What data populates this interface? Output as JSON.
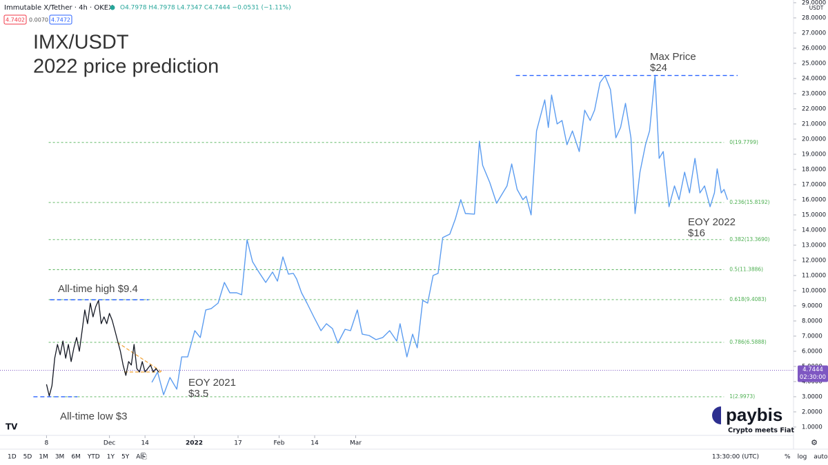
{
  "header": {
    "symbol": "Immutable X/Tether · 4h · OKEX",
    "ohlc": "O4.7978 H4.7978 L4.7347 C4.7444 −0.0531 (−1.11%)",
    "boxes": [
      "4.7402",
      "0.0070",
      "4.7472"
    ]
  },
  "chart_data": {
    "type": "line",
    "title": "IMX/USDT",
    "subtitle": "2022 price prediction",
    "y_unit": "USDT",
    "xlim": [
      -17,
      273
    ],
    "xticks": [
      {
        "value": 0,
        "label": "8"
      },
      {
        "value": 23,
        "label": "Dec"
      },
      {
        "value": 36,
        "label": "14"
      },
      {
        "value": 54,
        "label": "2022"
      },
      {
        "value": 70,
        "label": "17"
      },
      {
        "value": 85,
        "label": "Feb"
      },
      {
        "value": 98,
        "label": "14"
      },
      {
        "value": 113,
        "label": "Mar"
      }
    ],
    "ylim": [
      0.45,
      29.18
    ],
    "yticks": [
      {
        "value": 1,
        "label": "1.0000"
      },
      {
        "value": 2,
        "label": "2.0000"
      },
      {
        "value": 3,
        "label": "3.0000"
      },
      {
        "value": 4,
        "label": "4.0000"
      },
      {
        "value": 5,
        "label": "5.0000"
      },
      {
        "value": 6,
        "label": "6.0000"
      },
      {
        "value": 7,
        "label": "7.0000"
      },
      {
        "value": 8,
        "label": "8.0000"
      },
      {
        "value": 9,
        "label": "9.0000"
      },
      {
        "value": 10,
        "label": "10.0000"
      },
      {
        "value": 11,
        "label": "11.0000"
      },
      {
        "value": 12,
        "label": "12.0000"
      },
      {
        "value": 13,
        "label": "13.0000"
      },
      {
        "value": 14,
        "label": "14.0000"
      },
      {
        "value": 15,
        "label": "15.0000"
      },
      {
        "value": 16,
        "label": "16.0000"
      },
      {
        "value": 17,
        "label": "17.0000"
      },
      {
        "value": 18,
        "label": "18.0000"
      },
      {
        "value": 19,
        "label": "19.0000"
      },
      {
        "value": 20,
        "label": "20.0000"
      },
      {
        "value": 21,
        "label": "21.0000"
      },
      {
        "value": 22,
        "label": "22.0000"
      },
      {
        "value": 23,
        "label": "23.0000"
      },
      {
        "value": 24,
        "label": "24.0000"
      },
      {
        "value": 25,
        "label": "25.0000"
      },
      {
        "value": 26,
        "label": "26.0000"
      },
      {
        "value": 27,
        "label": "27.0000"
      },
      {
        "value": 28,
        "label": "28.0000"
      },
      {
        "value": 29,
        "label": "29.0000"
      }
    ],
    "series": [
      {
        "color": "#131722",
        "x": [
          0,
          1,
          2,
          3,
          4,
          5,
          6,
          7,
          8,
          9,
          10,
          11,
          12,
          13,
          14,
          15,
          16,
          17,
          18,
          19,
          20,
          21,
          22,
          23,
          24,
          25,
          26,
          27,
          28,
          29,
          30,
          31,
          32,
          33,
          34,
          35,
          36,
          37,
          38,
          39,
          40,
          41
        ],
        "values": [
          3.82,
          3.05,
          3.73,
          5.54,
          6.45,
          5.77,
          6.68,
          5.54,
          6.45,
          5.32,
          6.23,
          6.91,
          6.0,
          7.36,
          8.73,
          7.82,
          9.18,
          8.27,
          8.95,
          9.36,
          7.82,
          8.27,
          7.82,
          8.5,
          8.04,
          7.36,
          6.68,
          6.0,
          5.09,
          4.41,
          5.32,
          5.09,
          6.45,
          4.86,
          4.63,
          5.32,
          4.63,
          4.86,
          5.09,
          4.63,
          4.86,
          4.63
        ]
      },
      {
        "color": "#5b9cf0",
        "x": [
          38.5,
          40.6,
          42.8,
          45.1,
          47.6,
          49.4,
          51.6,
          54.2,
          56.2,
          58.2,
          60.2,
          62.7,
          65.0,
          67.0,
          69.5,
          71.3,
          73.3,
          75.3,
          77.6,
          80.1,
          82.6,
          84.4,
          86.4,
          88.4,
          90.2,
          91.4,
          93.2,
          95.2,
          97.7,
          100.3,
          102.3,
          104.5,
          106.5,
          109.1,
          111.1,
          113.6,
          115.4,
          117.9,
          120.4,
          122.9,
          125.4,
          128.0,
          129.2,
          131.7,
          133.8,
          135.5,
          137.5,
          139.3,
          141.3,
          143.1,
          144.8,
          147.4,
          149.4,
          151.4,
          153.1,
          156.4,
          158.2,
          159.4,
          162.0,
          164.5,
          168.3,
          170.0,
          172.0,
          174.1,
          175.3,
          177.1,
          179.1,
          182.1,
          183.4,
          184.6,
          186.6,
          188.4,
          190.2,
          192.2,
          194.7,
          196.7,
          198.7,
          200.3,
          202.3,
          204.1,
          206.1,
          208.1,
          209.8,
          211.6,
          213.6,
          215.1,
          216.9,
          218.9,
          220.4,
          222.4,
          223.9,
          225.4,
          227.5,
          229.5,
          231.2,
          233.2,
          235.0,
          237.0,
          238.8,
          240.5,
          242.5,
          244.1,
          245.1,
          246.6,
          247.6,
          248.9
        ],
        "values": [
          3.95,
          4.63,
          3.13,
          4.27,
          3.5,
          5.63,
          5.63,
          7.36,
          6.91,
          8.73,
          8.82,
          9.18,
          10.54,
          9.86,
          9.86,
          9.73,
          13.36,
          11.91,
          11.23,
          10.54,
          11.23,
          10.63,
          12.23,
          11.09,
          11.14,
          10.77,
          9.86,
          9.18,
          8.27,
          7.36,
          7.82,
          7.5,
          6.54,
          7.45,
          7.36,
          8.73,
          7.13,
          7.04,
          6.77,
          6.91,
          7.36,
          6.68,
          7.82,
          5.63,
          7.13,
          6.23,
          9.36,
          9.18,
          11.0,
          11.14,
          13.5,
          13.73,
          14.73,
          16.0,
          15.09,
          15.05,
          19.86,
          18.27,
          17.14,
          15.77,
          16.91,
          18.36,
          16.68,
          16.0,
          16.23,
          15.0,
          20.54,
          22.59,
          20.77,
          22.91,
          21.0,
          21.23,
          19.63,
          20.54,
          19.18,
          21.91,
          21.23,
          21.91,
          23.73,
          24.18,
          23.27,
          20.09,
          20.77,
          22.36,
          20.09,
          15.09,
          17.82,
          19.63,
          20.54,
          24.2,
          18.73,
          19.18,
          15.54,
          16.91,
          16.0,
          17.82,
          16.45,
          18.73,
          16.45,
          16.91,
          15.54,
          16.45,
          18.04,
          16.45,
          16.68,
          16.0
        ]
      }
    ],
    "fib": {
      "xrange": [
        0.8,
        247.6
      ],
      "color": "#4caf50",
      "levels": [
        {
          "value": 19.7799,
          "label": "0(19.7799)"
        },
        {
          "value": 15.8192,
          "label": "0.236(15.8192)"
        },
        {
          "value": 13.369,
          "label": "0.382(13.3690)"
        },
        {
          "value": 11.3886,
          "label": "0.5(11.3886)"
        },
        {
          "value": 9.4083,
          "label": "0.618(9.4083)"
        },
        {
          "value": 6.5888,
          "label": "0.786(6.5888)"
        },
        {
          "value": 2.9973,
          "label": "1(2.9973)"
        }
      ]
    },
    "annotations": [
      {
        "lines": [
          "All-time high $9.4"
        ],
        "value": 9.4,
        "xrange": [
          1.3,
          37.3
        ]
      },
      {
        "lines": [
          "All-time low $3"
        ],
        "value": 3,
        "xrange": [
          -4.8,
          11.3
        ]
      },
      {
        "lines": [
          "Max Price",
          "$24"
        ],
        "value": 24.2,
        "xrange": [
          171.5,
          252.6
        ]
      },
      {
        "lines": [
          "EOY 2021",
          "$3.5"
        ]
      },
      {
        "lines": [
          "EOY 2022",
          "$16"
        ]
      }
    ],
    "last_price": 4.7444,
    "countdown": "02:30:00"
  },
  "toolbar": {
    "ranges": [
      "1D",
      "5D",
      "1M",
      "3M",
      "6M",
      "YTD",
      "1Y",
      "5Y",
      "All"
    ],
    "time": "13:30:00 (UTC)",
    "options": [
      "%",
      "log",
      "auto"
    ]
  },
  "logo": {
    "name": "paybis",
    "tagline": "Crypto meets Fiat"
  }
}
